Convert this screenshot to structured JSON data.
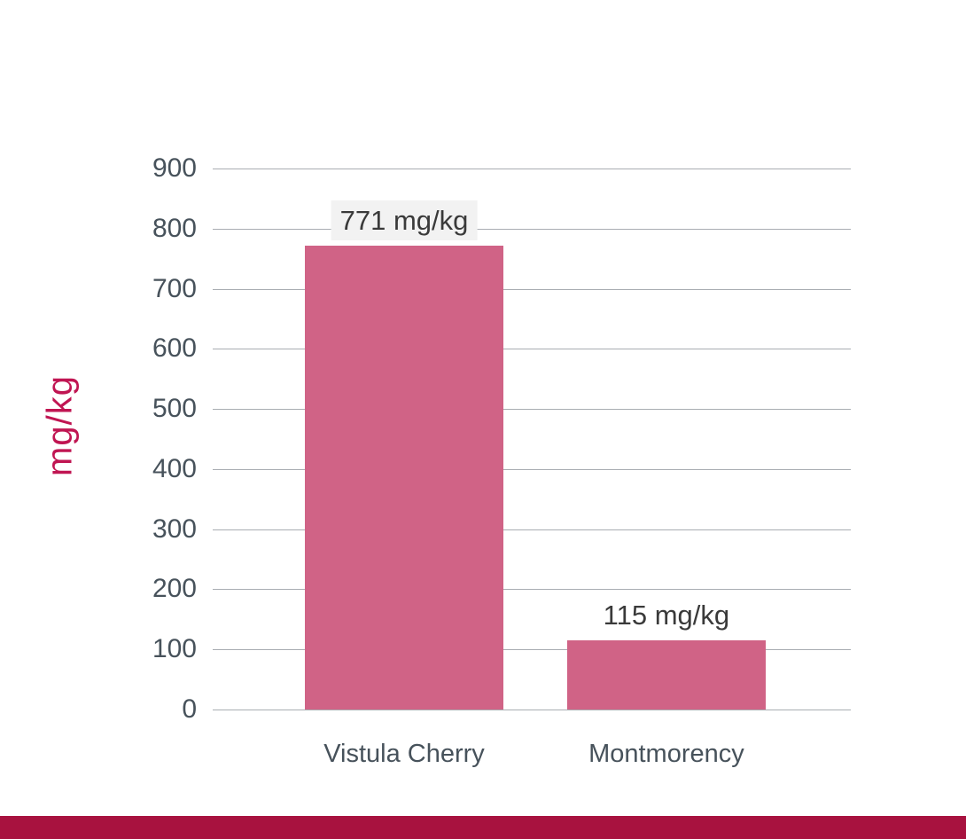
{
  "chart_data": {
    "type": "bar",
    "title": "",
    "categories": [
      "Vistula Cherry",
      "Montmorency"
    ],
    "values": [
      771,
      115
    ],
    "value_labels": [
      "771 mg/kg",
      "115 mg/kg"
    ],
    "value_label_backgrounds": [
      "#f2f2f2",
      "#ffffff"
    ],
    "xlabel": "",
    "ylabel": "mg/kg",
    "ylim": [
      0,
      900
    ],
    "yticks": [
      900,
      800,
      700,
      600,
      500,
      400,
      300,
      200,
      100,
      0
    ],
    "grid": true,
    "legend": "none",
    "colors": {
      "bar": "#d06386",
      "axis_title": "#c01552",
      "tick_label": "#47525b",
      "gridline": "#a9adb2",
      "value_label_text": "#3a3a3a",
      "footer_accent": "#a8123f",
      "background": "#ffffff"
    }
  }
}
